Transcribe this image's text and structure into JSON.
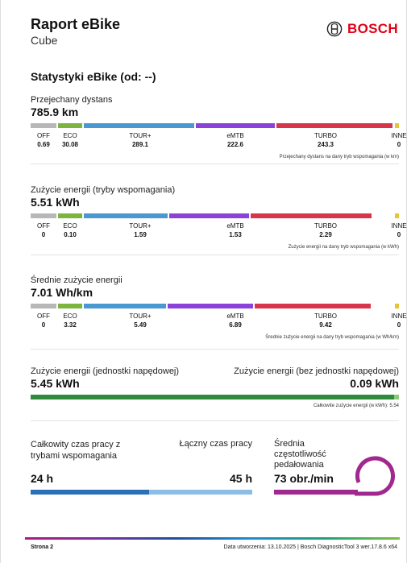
{
  "header": {
    "title": "Raport eBike",
    "subtitle": "Cube",
    "brand": "BOSCH"
  },
  "section_title": "Statystyki eBike (od: --)",
  "modes": [
    "OFF",
    "ECO",
    "TOUR+",
    "eMTB",
    "TURBO",
    "INNE"
  ],
  "mode_colors": {
    "OFF": "#b7b7b7",
    "ECO": "#7bb540",
    "TOUR+": "#4a98d2",
    "eMTB": "#8a42d8",
    "TURBO": "#d9354a",
    "INNE": "#e8c535"
  },
  "distance": {
    "label": "Przejechany dystans",
    "value": "785.9 km",
    "values": [
      "0.69",
      "30.08",
      "289.1",
      "222.6",
      "243.3",
      "0"
    ],
    "note": "Przejechany dystans na dany tryb wspomagania (w km)"
  },
  "energy_modes": {
    "label": "Zużycie energii (tryby wspomagania)",
    "value": "5.51 kWh",
    "values": [
      "0",
      "0.10",
      "1.59",
      "1.53",
      "2.29",
      "0"
    ],
    "note": "Zużycie energii na dany tryb wspomagania (w kWh)"
  },
  "avg_energy": {
    "label": "Średnie zużycie energii",
    "value": "7.01 Wh/km",
    "values": [
      "0",
      "3.32",
      "5.49",
      "6.89",
      "9.42",
      "0"
    ],
    "note": "Średnie zużycie energii na dany tryb wspomagania (w Wh/km)"
  },
  "drive_unit": {
    "label_with": "Zużycie energii (jednostki napędowej)",
    "value_with": "5.45 kWh",
    "label_without": "Zużycie energii (bez jednostki napędowej)",
    "value_without": "0.09 kWh",
    "note": "Całkowite zużycie energii (w  kWh): 5.54",
    "color_with": "#2e8b3e",
    "color_without": "#8cc97a"
  },
  "time": {
    "assist_label": "Całkowity czas pracy z trybami wspomagania",
    "assist_value": "24 h",
    "total_label": "Łączny czas pracy",
    "total_value": "45 h",
    "assist_color": "#2a6fb7",
    "total_color": "#8dbde6"
  },
  "cadence": {
    "label": "Średnia częstotliwość pedałowania",
    "value": "73 obr./min",
    "color": "#a0288f"
  },
  "footer": {
    "page": "Strona 2",
    "meta": "Data utworzenia: 13.10.2025 | Bosch DiagnosticTool 3 wer.17.8.6 x64"
  }
}
